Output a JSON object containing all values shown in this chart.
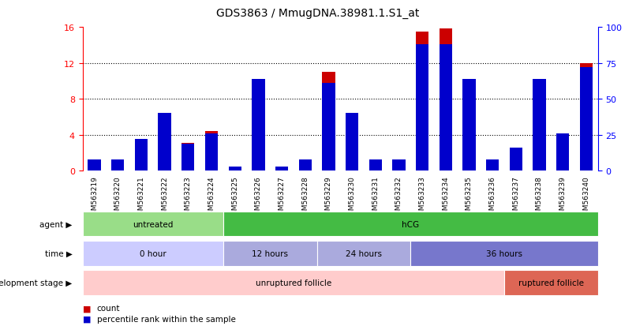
{
  "title": "GDS3863 / MmugDNA.38981.1.S1_at",
  "samples": [
    "GSM563219",
    "GSM563220",
    "GSM563221",
    "GSM563222",
    "GSM563223",
    "GSM563224",
    "GSM563225",
    "GSM563226",
    "GSM563227",
    "GSM563228",
    "GSM563229",
    "GSM563230",
    "GSM563231",
    "GSM563232",
    "GSM563233",
    "GSM563234",
    "GSM563235",
    "GSM563236",
    "GSM563237",
    "GSM563238",
    "GSM563239",
    "GSM563240"
  ],
  "count_values": [
    0.4,
    0.5,
    3.3,
    3.6,
    3.1,
    4.4,
    0.3,
    9.1,
    0.2,
    1.0,
    11.0,
    5.2,
    1.2,
    1.2,
    15.5,
    15.8,
    8.8,
    0.8,
    1.6,
    9.2,
    3.5,
    12.0
  ],
  "percentile_values": [
    8,
    8,
    22,
    40,
    19,
    26,
    3,
    64,
    3,
    8,
    61,
    40,
    8,
    8,
    88,
    88,
    64,
    8,
    16,
    64,
    26,
    72
  ],
  "bar_color": "#cc0000",
  "percentile_color": "#0000cc",
  "ylim_left": [
    0,
    16
  ],
  "ylim_right": [
    0,
    100
  ],
  "yticks_left": [
    0,
    4,
    8,
    12,
    16
  ],
  "yticks_right": [
    0,
    25,
    50,
    75,
    100
  ],
  "agent_spans": [
    {
      "label": "untreated",
      "start": 0,
      "end": 6,
      "color": "#99dd88"
    },
    {
      "label": "hCG",
      "start": 6,
      "end": 22,
      "color": "#44bb44"
    }
  ],
  "time_spans": [
    {
      "label": "0 hour",
      "start": 0,
      "end": 6,
      "color": "#ccccff"
    },
    {
      "label": "12 hours",
      "start": 6,
      "end": 10,
      "color": "#aaaadd"
    },
    {
      "label": "24 hours",
      "start": 10,
      "end": 14,
      "color": "#aaaadd"
    },
    {
      "label": "36 hours",
      "start": 14,
      "end": 22,
      "color": "#7777cc"
    }
  ],
  "dev_spans": [
    {
      "label": "unruptured follicle",
      "start": 0,
      "end": 18,
      "color": "#ffcccc"
    },
    {
      "label": "ruptured follicle",
      "start": 18,
      "end": 22,
      "color": "#dd6655"
    }
  ],
  "row_labels": [
    "agent",
    "time",
    "development stage"
  ],
  "legend_items": [
    {
      "label": "count",
      "color": "#cc0000"
    },
    {
      "label": "percentile rank within the sample",
      "color": "#0000cc"
    }
  ],
  "background_color": "#ffffff",
  "bar_width": 0.55
}
